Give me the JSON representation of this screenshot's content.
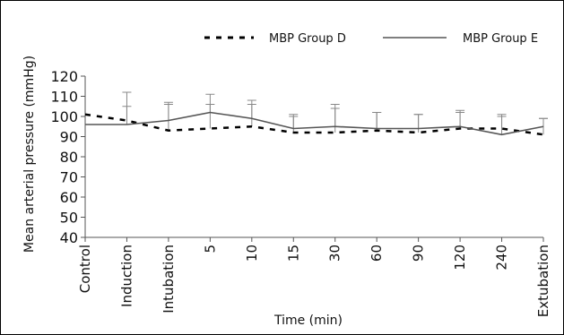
{
  "chart_data": {
    "type": "line",
    "title": "",
    "xlabel": "Time (min)",
    "ylabel": "Mean arterial pressure (mmHg)",
    "categories": [
      "Control",
      "Induction",
      "Intubation",
      "5",
      "10",
      "15",
      "30",
      "60",
      "90",
      "120",
      "240",
      "Extubation"
    ],
    "ylim": [
      40,
      120
    ],
    "yticks": [
      40,
      50,
      60,
      70,
      80,
      90,
      100,
      110,
      120
    ],
    "grid": false,
    "legend_position": "top",
    "series": [
      {
        "name": "MBP Group D",
        "style": "dotted",
        "color": "#000000",
        "values": [
          101,
          98,
          93,
          94,
          95,
          92,
          92,
          93,
          92,
          94,
          94,
          91
        ],
        "error_upper": [
          null,
          112,
          107,
          111,
          108,
          101,
          106,
          102,
          101,
          103,
          101,
          99
        ]
      },
      {
        "name": "MBP Group E",
        "style": "solid",
        "color": "#555555",
        "values": [
          96,
          96,
          98,
          102,
          99,
          94,
          95,
          94,
          94,
          95,
          91,
          95
        ],
        "error_upper": [
          null,
          105,
          106,
          106,
          106,
          100,
          104,
          102,
          101,
          102,
          100,
          99
        ]
      }
    ]
  }
}
